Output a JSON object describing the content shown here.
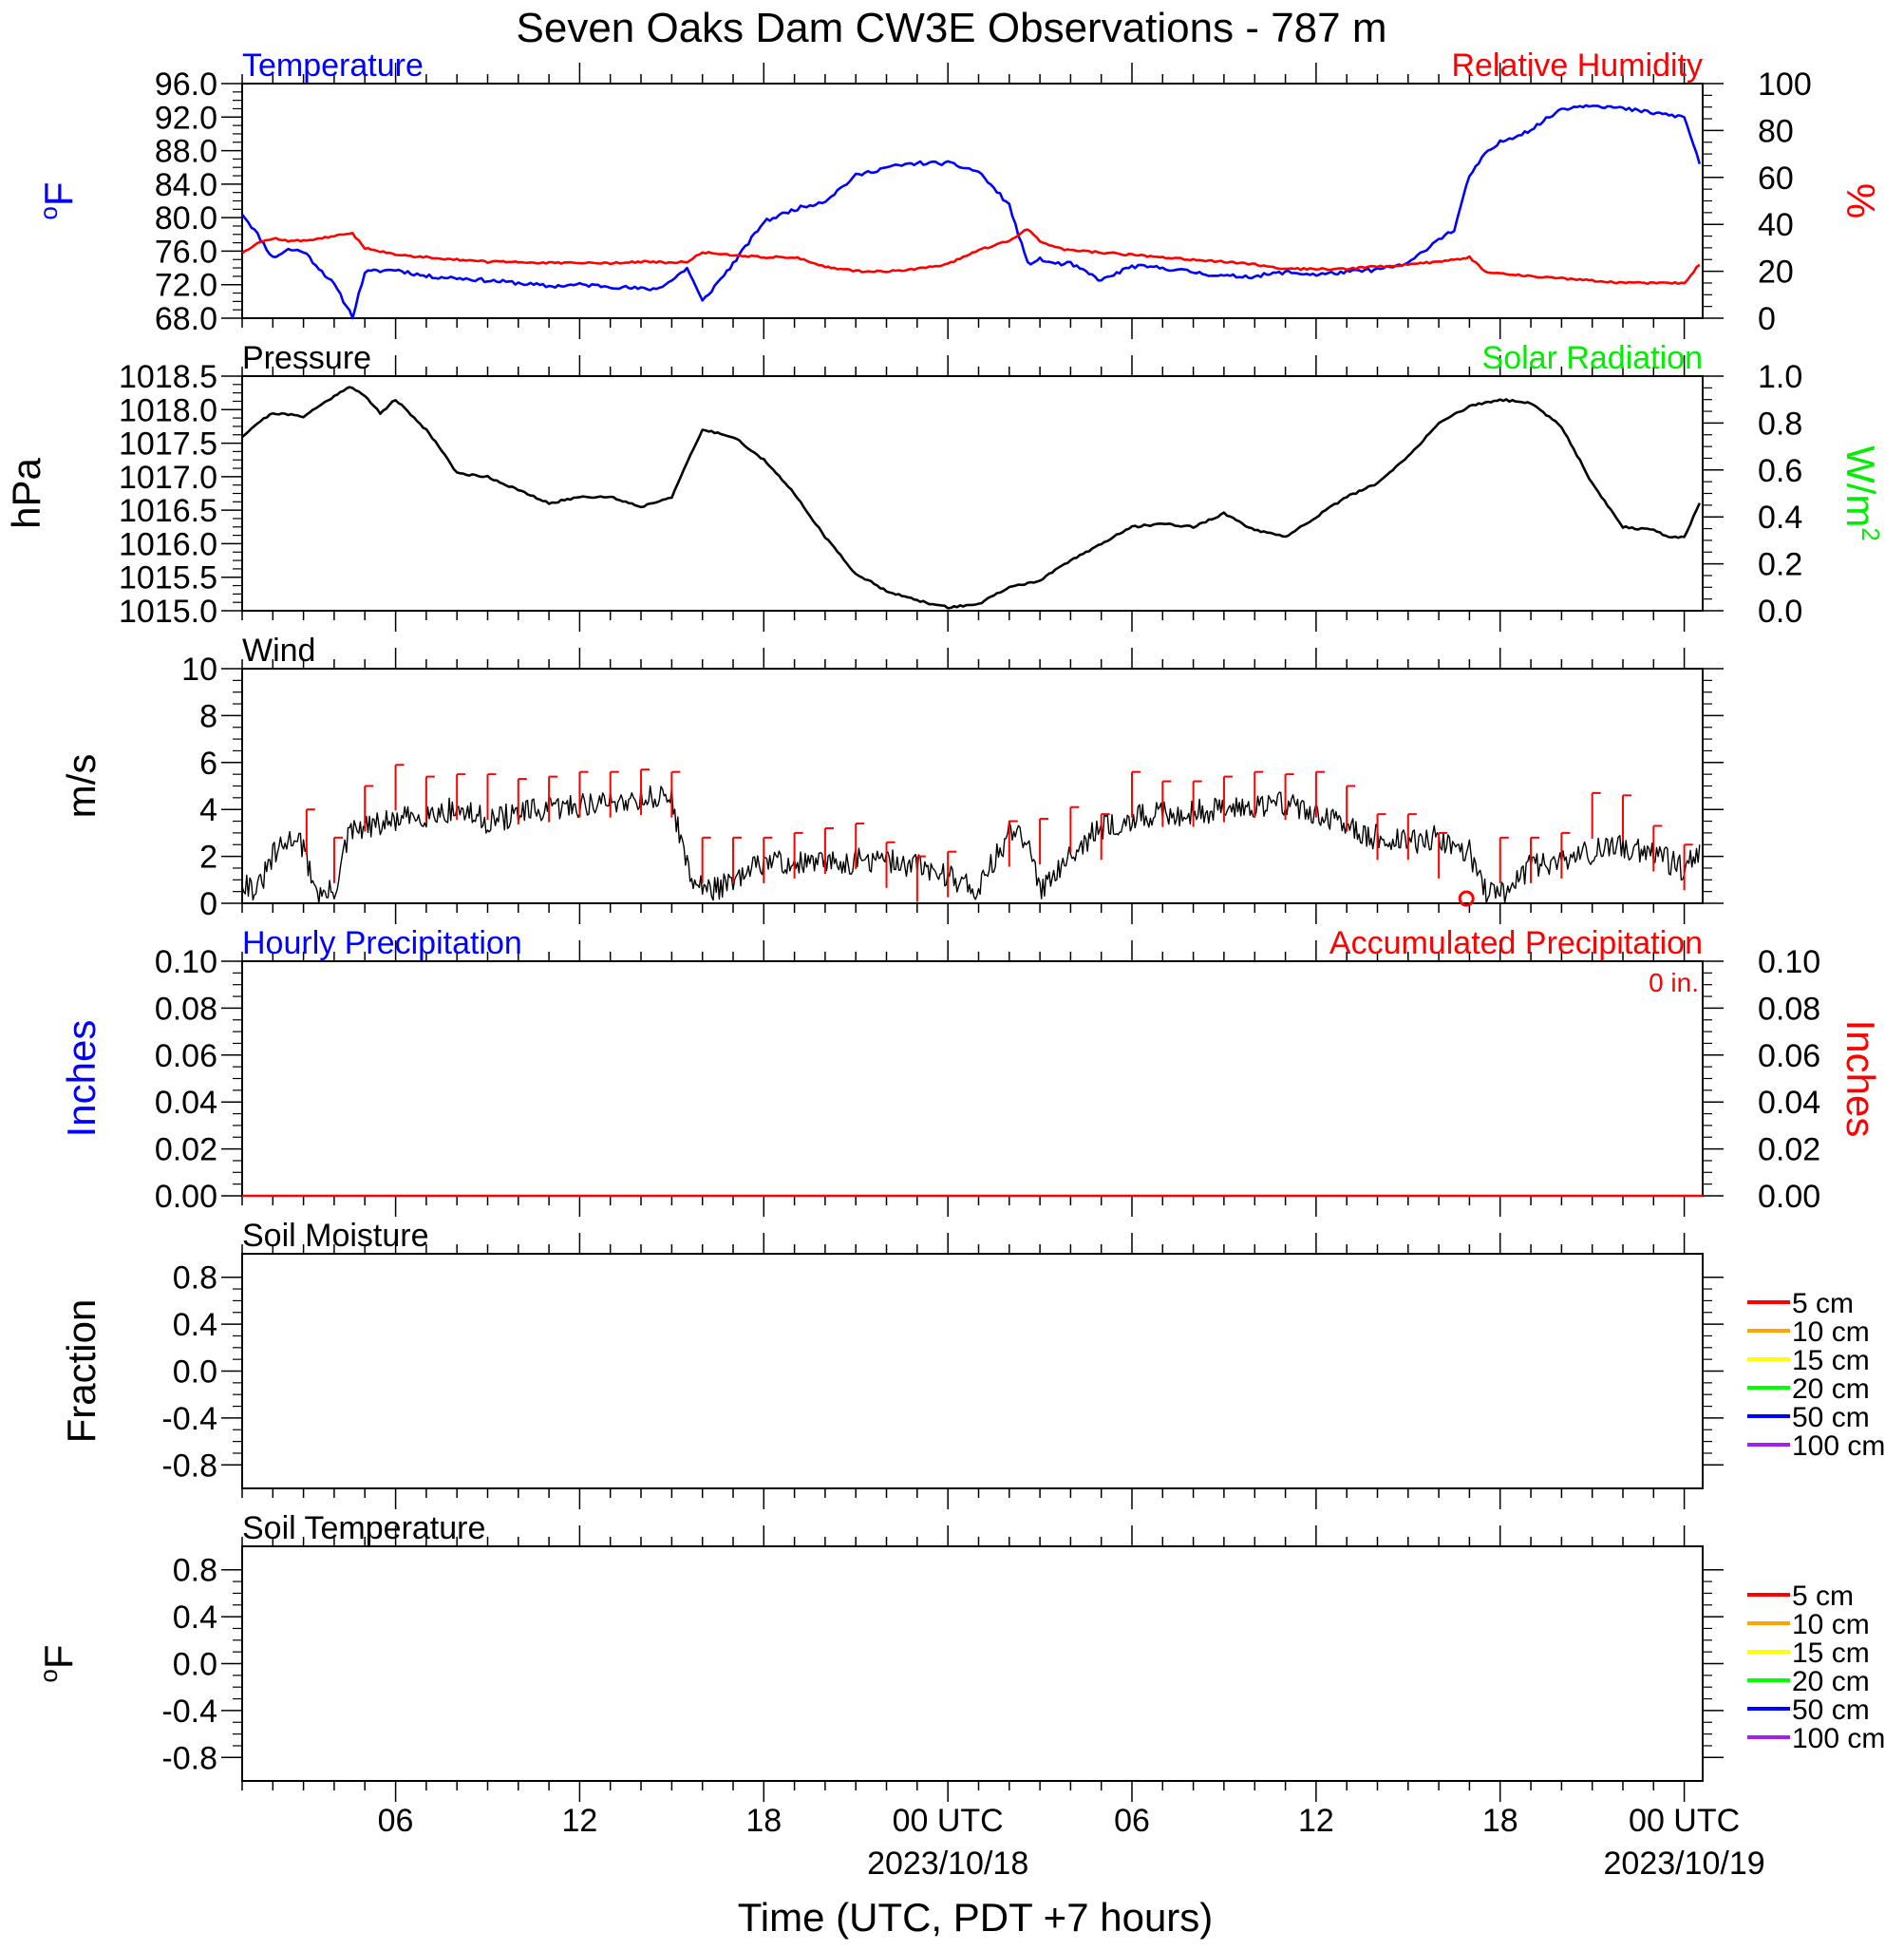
{
  "title": "Seven Oaks Dam CW3E Observations - 787 m",
  "x_axis": {
    "label": "Time (UTC, PDT +7 hours)",
    "tick_labels": [
      {
        "hour": 6,
        "label": "06",
        "date": ""
      },
      {
        "hour": 12,
        "label": "12",
        "date": ""
      },
      {
        "hour": 18,
        "label": "18",
        "date": ""
      },
      {
        "hour": 24,
        "label": "00 UTC",
        "date": "2023/10/18"
      },
      {
        "hour": 30,
        "label": "06",
        "date": ""
      },
      {
        "hour": 36,
        "label": "12",
        "date": ""
      },
      {
        "hour": 42,
        "label": "18",
        "date": ""
      },
      {
        "hour": 48,
        "label": "00 UTC",
        "date": "2023/10/19"
      }
    ]
  },
  "colors": {
    "temperature": "#0000ff",
    "humidity": "#ff0000",
    "pressure": "#000000",
    "solar": "#00ee00",
    "wind": "#000000",
    "barb": "#ff0000",
    "precip_hourly": "#0000ff",
    "precip_accum": "#ff0000"
  },
  "chart_data": [
    {
      "id": "temp_rh",
      "type": "line",
      "title_left": "Temperature",
      "title_right": "Relative Humidity",
      "ylabel_left": "oF",
      "ylabel_right": "%",
      "ylim_left": [
        68,
        96
      ],
      "ylim_right": [
        0,
        100
      ],
      "yticks_left": [
        "68.0",
        "72.0",
        "76.0",
        "80.0",
        "84.0",
        "88.0",
        "92.0",
        "96.0"
      ],
      "yticks_right": [
        "0",
        "20",
        "40",
        "60",
        "80",
        "100"
      ],
      "x": [
        1,
        1.5,
        2,
        2.5,
        3,
        4,
        4.6,
        5,
        6,
        7,
        8,
        9,
        10,
        11,
        12,
        13,
        14,
        14.5,
        15,
        15.5,
        16,
        17,
        18,
        19,
        20,
        21,
        22,
        23,
        24,
        25,
        26,
        26.6,
        27,
        27.5,
        28,
        29,
        30,
        31,
        32,
        33,
        34,
        35,
        36,
        37,
        38,
        39,
        40,
        40.5,
        41,
        41.5,
        42,
        43,
        44,
        45,
        46,
        47,
        48,
        48.5
      ],
      "series": [
        {
          "name": "Temperature",
          "axis": "left",
          "values": [
            80.5,
            78,
            75.2,
            76.2,
            76,
            72,
            68.2,
            73.5,
            73.8,
            73,
            72.8,
            72.5,
            72.2,
            71.8,
            72,
            71.8,
            71.5,
            71.5,
            72.5,
            74,
            70,
            74.5,
            79.5,
            81,
            82,
            85,
            86,
            86.5,
            86.5,
            85.5,
            81.5,
            74.5,
            75,
            74.5,
            74.5,
            72.5,
            74.2,
            74,
            73.5,
            73,
            73,
            73.5,
            73.2,
            73.5,
            73.8,
            74.5,
            77.5,
            78.5,
            85,
            87.5,
            89,
            90.5,
            93,
            93.5,
            93,
            92.5,
            92,
            86.5
          ]
        },
        {
          "name": "Relative Humidity",
          "axis": "right",
          "values": [
            28,
            32,
            34,
            33,
            33,
            35,
            36,
            30,
            27,
            26,
            25,
            24,
            24,
            23.5,
            23.5,
            23.5,
            24,
            24,
            23.5,
            24,
            28,
            27,
            26,
            26,
            22,
            20,
            20,
            21,
            23,
            29,
            33,
            38,
            33,
            30,
            29,
            28,
            27,
            26,
            25,
            24,
            23,
            21,
            21,
            21,
            22,
            23,
            24,
            25,
            26,
            20,
            19,
            18,
            17,
            16,
            15,
            15,
            15,
            23
          ]
        }
      ]
    },
    {
      "id": "pressure",
      "type": "line",
      "title_left": "Pressure",
      "title_right": "Solar Radiation",
      "ylabel_left": "hPa",
      "ylabel_right": "W/m",
      "ylabel_right_sup": "2",
      "ylim_left": [
        1015.0,
        1018.5
      ],
      "ylim_right": [
        0.0,
        1.0
      ],
      "yticks_left": [
        "1015.0",
        "1015.5",
        "1016.0",
        "1016.5",
        "1017.0",
        "1017.5",
        "1018.0",
        "1018.5"
      ],
      "yticks_right": [
        "0.0",
        "0.2",
        "0.4",
        "0.6",
        "0.8",
        "1.0"
      ],
      "x": [
        1,
        1.5,
        2,
        3,
        4,
        4.5,
        5,
        5.5,
        6,
        7,
        7.5,
        8,
        9,
        10,
        11,
        12,
        13,
        14,
        15,
        15.5,
        16,
        16.5,
        17,
        18,
        19,
        20,
        21,
        22,
        23,
        24,
        25,
        26,
        27,
        28,
        29,
        30,
        31,
        32,
        33,
        34,
        35,
        36,
        37,
        38,
        39,
        40,
        41,
        42,
        43,
        44,
        45,
        46,
        47,
        47.5,
        48,
        48.5
      ],
      "series": [
        {
          "name": "Pressure",
          "axis": "left",
          "values": [
            1017.6,
            1017.8,
            1017.95,
            1017.9,
            1018.2,
            1018.35,
            1018.2,
            1017.95,
            1018.15,
            1017.7,
            1017.4,
            1017.05,
            1017.0,
            1016.8,
            1016.6,
            1016.7,
            1016.7,
            1016.55,
            1016.7,
            1017.2,
            1017.7,
            1017.65,
            1017.6,
            1017.25,
            1016.75,
            1016.1,
            1015.55,
            1015.3,
            1015.15,
            1015.05,
            1015.1,
            1015.35,
            1015.45,
            1015.75,
            1016.0,
            1016.25,
            1016.3,
            1016.25,
            1016.45,
            1016.2,
            1016.1,
            1016.4,
            1016.7,
            1016.9,
            1017.3,
            1017.8,
            1018.05,
            1018.15,
            1018.1,
            1017.75,
            1016.9,
            1016.25,
            1016.2,
            1016.1,
            1016.1,
            1016.6
          ]
        }
      ]
    },
    {
      "id": "wind",
      "type": "line",
      "title_left": "Wind",
      "ylabel_left": "m/s",
      "ylim_left": [
        0,
        10
      ],
      "yticks_left": [
        "0",
        "2",
        "4",
        "6",
        "8",
        "10"
      ],
      "x": [
        1,
        1.5,
        2,
        2.8,
        3.5,
        4,
        4.5,
        5,
        6,
        7,
        8,
        9,
        10,
        11,
        12,
        13,
        14,
        15,
        15.5,
        16,
        17,
        18,
        19,
        20,
        21,
        22,
        23,
        24,
        25,
        26,
        26.5,
        27,
        28,
        29,
        30,
        31,
        32,
        33,
        34,
        35,
        36,
        37,
        38,
        39,
        40,
        41,
        41.5,
        42,
        42.5,
        43,
        44,
        45,
        46,
        47,
        48,
        48.5
      ],
      "series": [
        {
          "name": "Wind Speed",
          "axis": "left",
          "values": [
            1,
            0.5,
            2,
            3,
            0.3,
            0.5,
            3,
            3.2,
            3.5,
            3.8,
            4,
            3.5,
            3.8,
            4,
            4.2,
            4.3,
            4.5,
            4.5,
            1.5,
            0.6,
            0.8,
            1.8,
            1.7,
            1.7,
            1.8,
            1.8,
            1.6,
            1.2,
            0.6,
            3,
            2.8,
            0.6,
            2.2,
            3.2,
            3.6,
            3.8,
            3.9,
            4,
            4.2,
            4.3,
            3.8,
            3.2,
            2.8,
            2.6,
            2.8,
            2.2,
            0.5,
            0.3,
            1.0,
            1.6,
            1.8,
            2.2,
            2.4,
            2.2,
            1.4,
            2.2
          ]
        }
      ],
      "barbs": [
        {
          "hour": 3.1,
          "speed": 4.0
        },
        {
          "hour": 4.0,
          "speed": 2.8
        },
        {
          "hour": 5.0,
          "speed": 5.0
        },
        {
          "hour": 6.0,
          "speed": 5.9
        },
        {
          "hour": 7.0,
          "speed": 5.4
        },
        {
          "hour": 8.0,
          "speed": 5.5
        },
        {
          "hour": 9.0,
          "speed": 5.5
        },
        {
          "hour": 10.0,
          "speed": 5.3
        },
        {
          "hour": 11.0,
          "speed": 5.4
        },
        {
          "hour": 12.0,
          "speed": 5.6
        },
        {
          "hour": 13.0,
          "speed": 5.6
        },
        {
          "hour": 14.0,
          "speed": 5.7
        },
        {
          "hour": 15.0,
          "speed": 5.6
        },
        {
          "hour": 16.0,
          "speed": 2.8
        },
        {
          "hour": 17.0,
          "speed": 2.8
        },
        {
          "hour": 18.0,
          "speed": 2.8
        },
        {
          "hour": 19.0,
          "speed": 3.0
        },
        {
          "hour": 20.0,
          "speed": 3.2
        },
        {
          "hour": 21.0,
          "speed": 3.4
        },
        {
          "hour": 22.0,
          "speed": 2.6
        },
        {
          "hour": 23.0,
          "speed": 2.0
        },
        {
          "hour": 24.0,
          "speed": 2.2
        },
        {
          "hour": 26.0,
          "speed": 3.5
        },
        {
          "hour": 27.0,
          "speed": 3.6
        },
        {
          "hour": 28.0,
          "speed": 4.1
        },
        {
          "hour": 29.0,
          "speed": 3.8
        },
        {
          "hour": 30.0,
          "speed": 5.6
        },
        {
          "hour": 31.0,
          "speed": 5.2
        },
        {
          "hour": 32.0,
          "speed": 5.2
        },
        {
          "hour": 33.0,
          "speed": 5.4
        },
        {
          "hour": 34.0,
          "speed": 5.6
        },
        {
          "hour": 35.0,
          "speed": 5.5
        },
        {
          "hour": 36.0,
          "speed": 5.6
        },
        {
          "hour": 37.0,
          "speed": 5.0
        },
        {
          "hour": 38.0,
          "speed": 3.8
        },
        {
          "hour": 39.0,
          "speed": 3.8
        },
        {
          "hour": 40.0,
          "speed": 3.0
        },
        {
          "hour": 42.0,
          "speed": 2.8
        },
        {
          "hour": 43.0,
          "speed": 2.8
        },
        {
          "hour": 44.0,
          "speed": 3.0
        },
        {
          "hour": 45.0,
          "speed": 4.7
        },
        {
          "hour": 46.0,
          "speed": 4.6
        },
        {
          "hour": 47.0,
          "speed": 3.3
        },
        {
          "hour": 48.0,
          "speed": 2.5
        }
      ],
      "calm_marker_hour": 40.9
    },
    {
      "id": "precip",
      "type": "line",
      "title_left": "Hourly Precipitation",
      "title_right": "Accumulated Precipitation",
      "annotation": "0 in.",
      "ylabel_left": "Inches",
      "ylabel_right": "Inches",
      "ylim_left": [
        0,
        0.1
      ],
      "ylim_right": [
        0,
        0.1
      ],
      "yticks_left": [
        "0.00",
        "0.02",
        "0.04",
        "0.06",
        "0.08",
        "0.10"
      ],
      "yticks_right": [
        "0.00",
        "0.02",
        "0.04",
        "0.06",
        "0.08",
        "0.10"
      ],
      "x": [
        1,
        48.6
      ],
      "series": [
        {
          "name": "Accumulated Precipitation",
          "axis": "right",
          "values": [
            0,
            0
          ]
        }
      ]
    },
    {
      "id": "soil_moisture",
      "type": "line",
      "title_left": "Soil Moisture",
      "ylabel_left": "Fraction",
      "ylim_left": [
        -1,
        1
      ],
      "yticks_left": [
        "-0.8",
        "-0.4",
        "0.0",
        "0.4",
        "0.8"
      ],
      "legend": [
        {
          "name": "5 cm",
          "color": "#ff0000"
        },
        {
          "name": "10 cm",
          "color": "#ffa500"
        },
        {
          "name": "15 cm",
          "color": "#ffff00"
        },
        {
          "name": "20 cm",
          "color": "#00ff00"
        },
        {
          "name": "50 cm",
          "color": "#0000ff"
        },
        {
          "name": "100 cm",
          "color": "#a020f0"
        }
      ]
    },
    {
      "id": "soil_temp",
      "type": "line",
      "title_left": "Soil Temperature",
      "ylabel_left": "oF",
      "ylim_left": [
        -1,
        1
      ],
      "yticks_left": [
        "-0.8",
        "-0.4",
        "0.0",
        "0.4",
        "0.8"
      ],
      "legend": [
        {
          "name": "5 cm",
          "color": "#ff0000"
        },
        {
          "name": "10 cm",
          "color": "#ffa500"
        },
        {
          "name": "15 cm",
          "color": "#ffff00"
        },
        {
          "name": "20 cm",
          "color": "#00ff00"
        },
        {
          "name": "50 cm",
          "color": "#0000ff"
        },
        {
          "name": "100 cm",
          "color": "#a020f0"
        }
      ]
    }
  ]
}
